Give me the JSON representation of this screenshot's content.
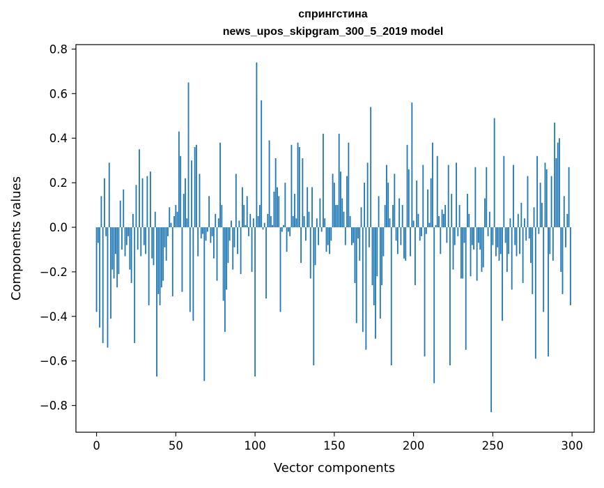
{
  "chart_data": {
    "type": "bar",
    "title": "спрингстина",
    "subtitle": "news_upos_skipgram_300_5_2019 model",
    "xlabel": "Vector components",
    "ylabel": "Components values",
    "xlim": [
      -13,
      314
    ],
    "ylim": [
      -0.92,
      0.82
    ],
    "xticks": [
      0,
      50,
      100,
      150,
      200,
      250,
      300
    ],
    "xtick_labels": [
      "0",
      "50",
      "100",
      "150",
      "200",
      "250",
      "300"
    ],
    "yticks": [
      0.8,
      0.6,
      0.4,
      0.2,
      0.0,
      -0.2,
      -0.4,
      -0.6,
      -0.8
    ],
    "ytick_labels": [
      "0.8",
      "0.6",
      "0.4",
      "0.2",
      "0.0",
      "−0.2",
      "−0.4",
      "−0.6",
      "−0.8"
    ],
    "bar_color": "#1f77b4",
    "grid": false,
    "series": [
      {
        "name": "components",
        "values": [
          -0.38,
          -0.07,
          -0.45,
          0.14,
          -0.52,
          0.22,
          -0.04,
          -0.54,
          0.29,
          -0.41,
          -0.19,
          -0.23,
          -0.12,
          -0.27,
          -0.21,
          0.12,
          -0.1,
          0.17,
          -0.13,
          -0.08,
          -0.04,
          -0.19,
          -0.25,
          0.06,
          -0.52,
          0.19,
          -0.1,
          0.35,
          -0.13,
          0.22,
          -0.08,
          -0.12,
          0.23,
          -0.35,
          0.25,
          -0.14,
          -0.17,
          0.07,
          -0.67,
          -0.3,
          -0.35,
          -0.27,
          -0.24,
          -0.09,
          -0.15,
          -0.04,
          0.09,
          0.02,
          -0.31,
          0.05,
          0.1,
          0.07,
          0.43,
          0.32,
          -0.29,
          0.15,
          0.22,
          0.04,
          0.65,
          -0.38,
          0.3,
          -0.42,
          0.36,
          0.37,
          -0.13,
          0.24,
          -0.05,
          -0.03,
          -0.69,
          -0.06,
          -0.02,
          0.14,
          -0.07,
          -0.04,
          -0.14,
          0.06,
          -0.24,
          0.04,
          0.38,
          0.1,
          -0.33,
          -0.47,
          -0.28,
          -0.16,
          -0.06,
          0.03,
          -0.19,
          -0.09,
          0.24,
          -0.12,
          0.03,
          -0.21,
          0.18,
          0.1,
          0.01,
          0.14,
          -0.04,
          0.06,
          -0.2,
          0.04,
          -0.67,
          0.74,
          0.05,
          0.1,
          0.57,
          -0.01,
          0.02,
          -0.32,
          0.06,
          0.39,
          0.05,
          0.01,
          0.16,
          0.31,
          0.18,
          0.14,
          -0.38,
          -0.02,
          0.01,
          0.2,
          -0.11,
          -0.02,
          -0.04,
          0.37,
          0.05,
          0.15,
          0.04,
          0.38,
          0.36,
          -0.16,
          0.31,
          0.05,
          -0.06,
          0.18,
          0.07,
          -0.23,
          0.18,
          -0.62,
          -0.17,
          0.04,
          -0.08,
          0.13,
          -0.02,
          0.42,
          0.04,
          -0.11,
          -0.08,
          -0.12,
          -0.06,
          0.24,
          0.2,
          0.1,
          0.1,
          0.42,
          0.25,
          0.13,
          0.07,
          -0.08,
          0.23,
          0.38,
          0.05,
          -0.08,
          -0.07,
          -0.25,
          -0.43,
          -0.05,
          -0.15,
          0.09,
          -0.47,
          0.2,
          -0.55,
          0.29,
          -0.09,
          0.54,
          -0.26,
          -0.35,
          -0.5,
          -0.22,
          0.14,
          -0.41,
          -0.26,
          -0.13,
          0.1,
          0.28,
          0.2,
          0.04,
          -0.62,
          0.1,
          0.24,
          -0.06,
          -0.12,
          0.13,
          -0.08,
          0.1,
          -0.14,
          -0.15,
          0.37,
          0.26,
          -0.13,
          0.56,
          0.03,
          -0.26,
          0.21,
          0.06,
          -0.06,
          -0.04,
          0.28,
          -0.58,
          -0.03,
          0.17,
          0.02,
          0.22,
          0.38,
          -0.7,
          0.01,
          0.32,
          0.05,
          -0.12,
          0.08,
          0.06,
          0.1,
          -0.07,
          0.28,
          -0.62,
          0.15,
          -0.19,
          -0.08,
          0.29,
          -0.04,
          0.1,
          -0.23,
          -0.23,
          -0.07,
          -0.55,
          0.15,
          0.06,
          -0.22,
          -0.08,
          -0.1,
          0.27,
          -0.24,
          -0.07,
          -0.1,
          -0.2,
          -0.18,
          0.13,
          0.27,
          -0.04,
          0.07,
          -0.83,
          -0.08,
          0.49,
          -0.13,
          -0.09,
          -0.15,
          -0.12,
          -0.42,
          0.32,
          -0.07,
          -0.2,
          -0.12,
          0.04,
          -0.28,
          0.28,
          -0.08,
          -0.13,
          0.06,
          -0.12,
          0.11,
          -0.25,
          0.04,
          -0.06,
          0.23,
          -0.05,
          -0.16,
          -0.3,
          0.09,
          -0.59,
          0.32,
          -0.03,
          0.2,
          0.11,
          -0.38,
          0.29,
          0.26,
          -0.58,
          -0.12,
          0.23,
          -0.15,
          0.47,
          0.31,
          0.38,
          0.4,
          -0.2,
          -0.3,
          0.14,
          -0.09,
          0.06,
          0.27,
          -0.35
        ]
      }
    ]
  }
}
